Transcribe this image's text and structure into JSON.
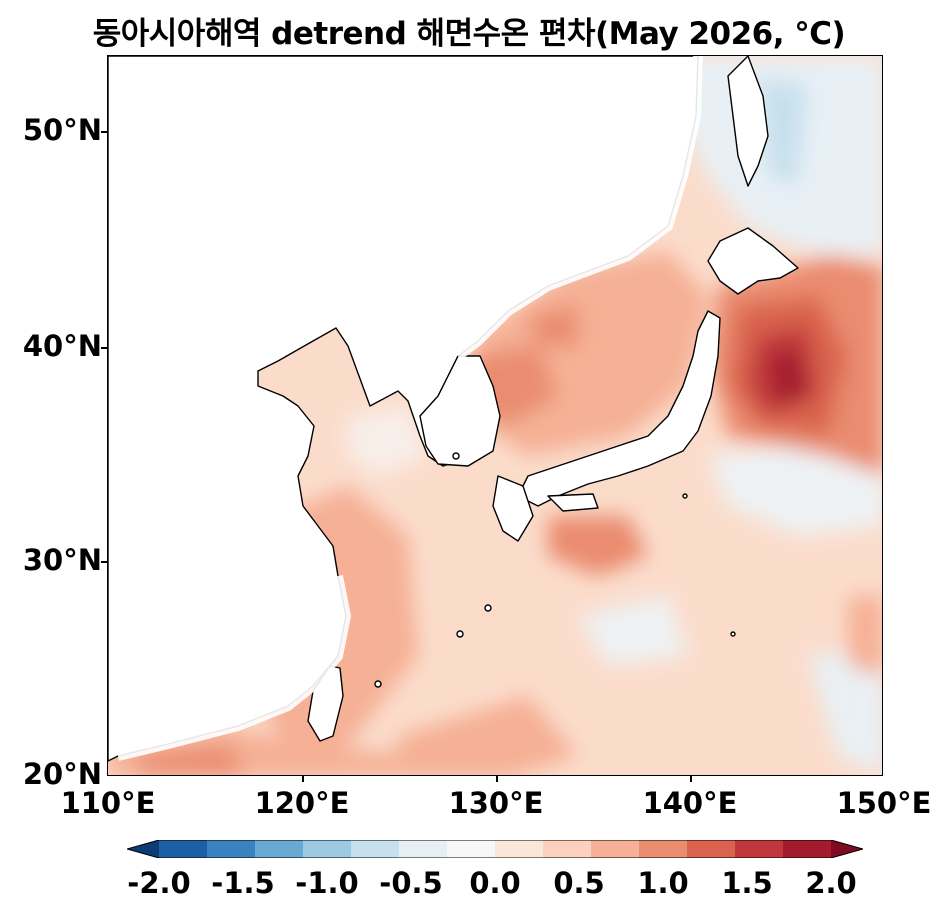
{
  "title": "동아시아해역 detrend 해면수온 편차(May 2026, °C)",
  "map": {
    "lon_range": [
      110,
      150
    ],
    "lat_range": [
      20,
      53.5
    ],
    "y_ticks": [
      "20°N",
      "30°N",
      "40°N",
      "50°N"
    ],
    "x_ticks": [
      "110°E",
      "120°E",
      "130°E",
      "140°E",
      "150°E"
    ]
  },
  "colorbar": {
    "labels": [
      "-2.0",
      "-1.5",
      "-1.0",
      "-0.5",
      "0.0",
      "0.5",
      "1.0",
      "1.5",
      "2.0"
    ],
    "colors": [
      "#0b3c73",
      "#1c5fa5",
      "#3a82bf",
      "#6aa9d1",
      "#9ccae2",
      "#c7e0ee",
      "#e6eff4",
      "#f7f7f7",
      "#fbe6da",
      "#fbd0bc",
      "#f5b095",
      "#ea8c6f",
      "#d9634e",
      "#c0383b",
      "#a31b2d",
      "#7f0b22"
    ]
  }
}
